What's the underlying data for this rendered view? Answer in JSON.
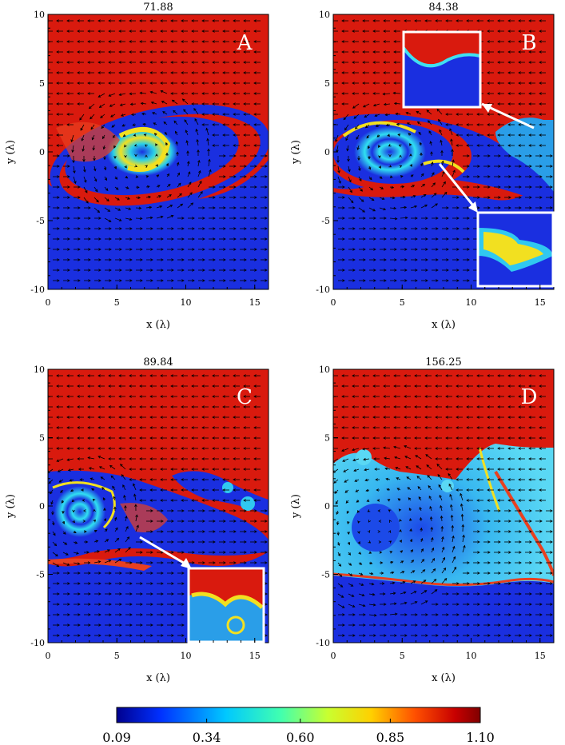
{
  "chart_data": [
    {
      "type": "heatmap",
      "panel": "A",
      "title": "71.88",
      "xlabel": "x (λ)",
      "ylabel": "y (λ)",
      "xlim": [
        0,
        16
      ],
      "ylim": [
        -10,
        10
      ],
      "xticks": [
        "0",
        "5",
        "10",
        "15"
      ],
      "yticks": [
        "10",
        "5",
        "0",
        "-5",
        "-10"
      ],
      "colors": {
        "upper": "#d91a0e",
        "lower": "#1a2fe0",
        "mixed": "#2ad0e8",
        "hot": "#f2e020"
      }
    },
    {
      "type": "heatmap",
      "panel": "B",
      "title": "84.38",
      "xlabel": "x (λ)",
      "ylabel": "y (λ)",
      "xlim": [
        0,
        16
      ],
      "ylim": [
        -10,
        10
      ],
      "xticks": [
        "0",
        "5",
        "10",
        "15"
      ],
      "yticks": [
        "10",
        "5",
        "0",
        "-5",
        "-10"
      ],
      "insets": 2
    },
    {
      "type": "heatmap",
      "panel": "C",
      "title": "89.84",
      "xlabel": "x (λ)",
      "ylabel": "y (λ)",
      "xlim": [
        0,
        16
      ],
      "ylim": [
        -10,
        10
      ],
      "xticks": [
        "0",
        "5",
        "10",
        "15"
      ],
      "yticks": [
        "10",
        "5",
        "0",
        "-5",
        "-10"
      ],
      "insets": 1
    },
    {
      "type": "heatmap",
      "panel": "D",
      "title": "156.25",
      "xlabel": "x (λ)",
      "ylabel": "y (λ)",
      "xlim": [
        0,
        16
      ],
      "ylim": [
        -10,
        10
      ],
      "xticks": [
        "0",
        "5",
        "10",
        "15"
      ],
      "yticks": [
        "10",
        "5",
        "0",
        "-5",
        "-10"
      ]
    }
  ],
  "colorbar": {
    "ticks": [
      "0.09",
      "0.34",
      "0.60",
      "0.85",
      "1.10"
    ],
    "range": [
      0.09,
      1.1
    ],
    "colors": [
      "#00008f",
      "#0030ff",
      "#00c8ff",
      "#40ffb0",
      "#c8ff30",
      "#ffd000",
      "#ff5000",
      "#c80000",
      "#800000"
    ]
  }
}
